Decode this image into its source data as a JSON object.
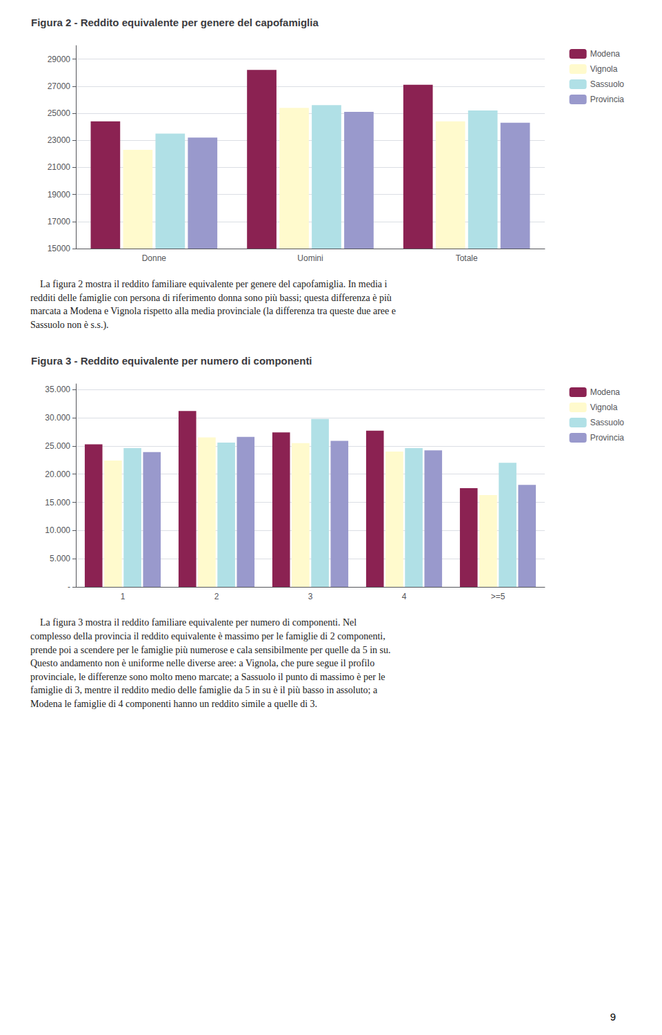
{
  "chart_data": [
    {
      "type": "bar",
      "title": "Figura 2 - Reddito equivalente per genere del capofamiglia",
      "categories": [
        "Donne",
        "Uomini",
        "Totale"
      ],
      "series": [
        {
          "name": "Modena",
          "color": "#8B2252",
          "values": [
            24400,
            28200,
            27100
          ]
        },
        {
          "name": "Vignola",
          "color": "#FFFACD",
          "values": [
            22300,
            25400,
            24400
          ]
        },
        {
          "name": "Sassuolo",
          "color": "#B0E0E6",
          "values": [
            23500,
            25600,
            25200
          ]
        },
        {
          "name": "Provincia",
          "color": "#9999CC",
          "values": [
            23200,
            25100,
            24300
          ]
        }
      ],
      "ylim": [
        15000,
        30000
      ],
      "yticks": [
        15000,
        17000,
        19000,
        21000,
        23000,
        25000,
        27000,
        29000
      ],
      "grid": true,
      "legend": "upper right",
      "annotations": [
        "    La figura 2 mostra il reddito familiare equivalente per genere del capofamiglia. In media i\nredditi delle famiglie con persona di riferimento donna sono più bassi; questa differenza è più\nmarcata a Modena e Vignola rispetto alla media provinciale (la differenza tra queste due aree e\nSassuolo non è s.s.)."
      ]
    },
    {
      "type": "bar",
      "title": "Figura 3 - Reddito equivalente per numero di componenti",
      "categories": [
        "1",
        "2",
        "3",
        "4",
        ">=5"
      ],
      "series": [
        {
          "name": "Modena",
          "color": "#8B2252",
          "values": [
            25300,
            31200,
            27400,
            27700,
            17500
          ]
        },
        {
          "name": "Vignola",
          "color": "#FFFACD",
          "values": [
            22400,
            26500,
            25500,
            24000,
            16300
          ]
        },
        {
          "name": "Sassuolo",
          "color": "#B0E0E6",
          "values": [
            24600,
            25600,
            29800,
            24600,
            22000
          ]
        },
        {
          "name": "Provincia",
          "color": "#9999CC",
          "values": [
            23900,
            26600,
            25900,
            24200,
            18100
          ]
        }
      ],
      "ylim": [
        0,
        36000
      ],
      "yticks": [
        {
          "value": 0,
          "label": "-"
        },
        {
          "value": 5000,
          "label": "5.000"
        },
        {
          "value": 10000,
          "label": "10.000"
        },
        {
          "value": 15000,
          "label": "15.000"
        },
        {
          "value": 20000,
          "label": "20.000"
        },
        {
          "value": 25000,
          "label": "25.000"
        },
        {
          "value": 30000,
          "label": "30.000"
        },
        {
          "value": 35000,
          "label": "35.000"
        }
      ],
      "grid": true,
      "legend": "upper right",
      "annotations": [
        "    La figura 3 mostra il reddito familiare equivalente per numero di componenti. Nel\ncomplesso della provincia il reddito equivalente è massimo per le famiglie di 2 componenti,\nprende poi a scendere per le famiglie più numerose e cala sensibilmente per quelle da 5 in su.\nQuesto andamento non è uniforme nelle diverse aree: a Vignola, che pure segue il profilo\nprovinciale, le differenze sono molto meno marcate; a Sassuolo il punto di massimo è per le\nfamiglie di 3, mentre il reddito medio delle famiglie da 5 in su è il più basso in assoluto; a\nModena le famiglie di 4 componenti hanno un reddito simile a quelle di 3."
      ]
    }
  ],
  "annotations": [
    "9"
  ]
}
